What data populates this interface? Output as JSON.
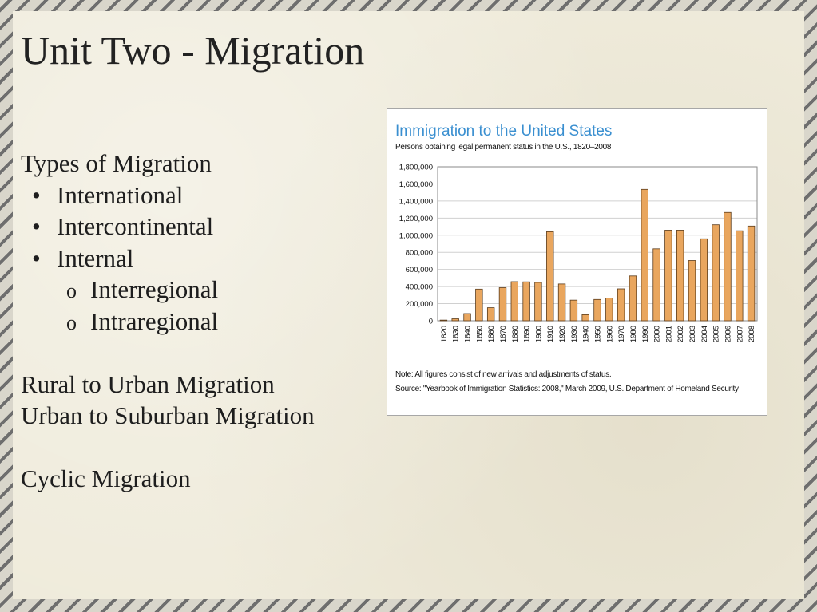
{
  "slide": {
    "title": "Unit Two - Migration",
    "types_heading": "Types of Migration",
    "bullets": [
      "International",
      "Intercontinental",
      "Internal"
    ],
    "bullet_marker": "•",
    "sub_bullets": [
      "Interregional",
      "Intraregional"
    ],
    "sub_bullet_marker": "o",
    "rural_urban": "Rural to Urban Migration",
    "urban_suburban": "Urban to Suburban Migration",
    "cyclic": "Cyclic Migration"
  },
  "chart_note": "Note: All figures consist of new arrivals and adjustments of status.",
  "chart_source": "Source: \"Yearbook of Immigration Statistics: 2008,\" March 2009, U.S. Department of Homeland Security",
  "colors": {
    "bar_fill": "#e9a65e",
    "bar_stroke": "#5a3b1b",
    "title_blue": "#3a8fd0"
  },
  "chart_data": {
    "type": "bar",
    "title": "Immigration to the United States",
    "subtitle": "Persons obtaining legal permanent status in the U.S., 1820–2008",
    "categories": [
      "1820",
      "1830",
      "1840",
      "1850",
      "1860",
      "1870",
      "1880",
      "1890",
      "1900",
      "1910",
      "1920",
      "1930",
      "1940",
      "1950",
      "1960",
      "1970",
      "1980",
      "1990",
      "2000",
      "2001",
      "2002",
      "2003",
      "2004",
      "2005",
      "2006",
      "2007",
      "2008"
    ],
    "values": [
      8000,
      23000,
      84000,
      370000,
      153000,
      387000,
      457000,
      455000,
      448000,
      1041000,
      430000,
      241000,
      71000,
      249000,
      265000,
      373000,
      524000,
      1536000,
      841000,
      1059000,
      1059000,
      704000,
      958000,
      1122000,
      1266000,
      1052000,
      1107000
    ],
    "yticks": [
      0,
      200000,
      400000,
      600000,
      800000,
      1000000,
      1200000,
      1400000,
      1600000,
      1800000
    ],
    "ytick_labels": [
      "0",
      "200,000",
      "400,000",
      "600,000",
      "800,000",
      "1,000,000",
      "1,200,000",
      "1,400,000",
      "1,600,000",
      "1,800,000"
    ],
    "ylim": [
      0,
      1800000
    ],
    "grid": true,
    "legend": "none"
  }
}
